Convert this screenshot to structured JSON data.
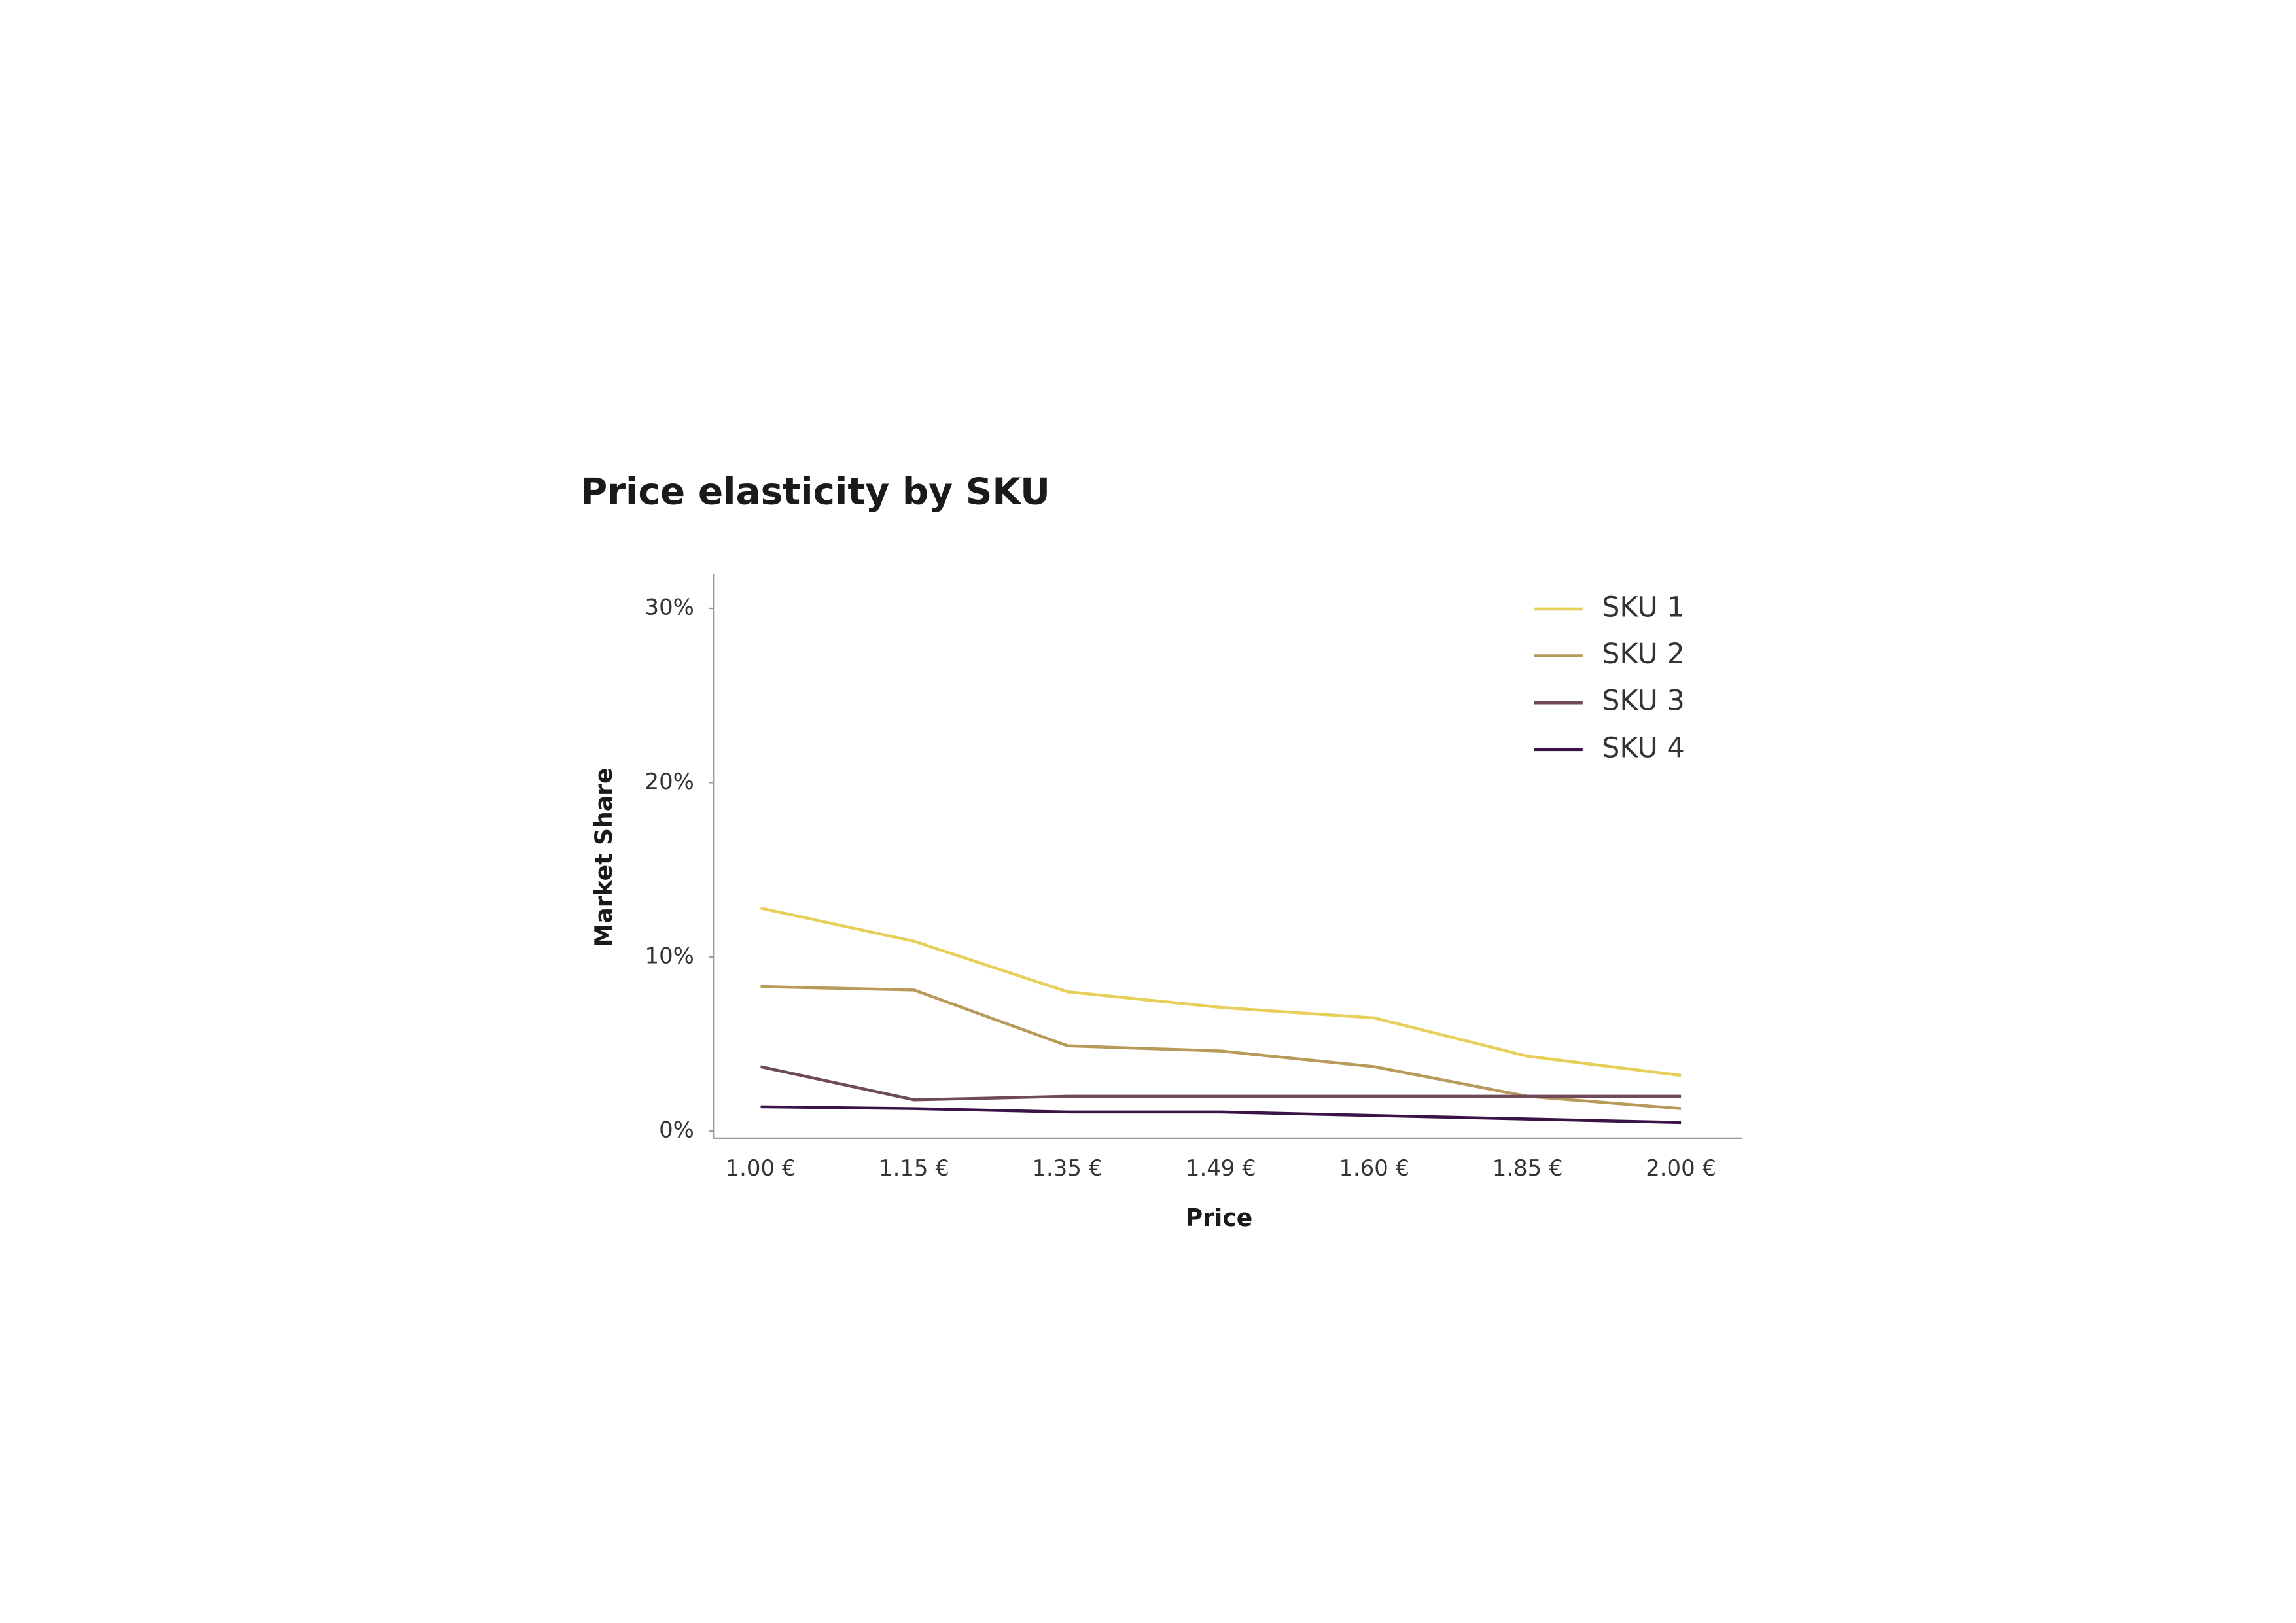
{
  "chart_data": {
    "type": "line",
    "title": "Price elasticity by SKU",
    "x_label": "Price",
    "y_label": "Market Share",
    "categories": [
      "1.00 €",
      "1.15 €",
      "1.35 €",
      "1.49 €",
      "1.60 €",
      "1.85 €",
      "2.00 €"
    ],
    "series": [
      {
        "name": "SKU 1",
        "color": "#e8cf5a",
        "values": [
          12.8,
          10.9,
          8.0,
          7.1,
          6.5,
          4.3,
          3.2
        ]
      },
      {
        "name": "SKU 2",
        "color": "#b89a5a",
        "values": [
          8.3,
          8.1,
          4.9,
          4.6,
          3.7,
          2.0,
          1.3
        ]
      },
      {
        "name": "SKU 3",
        "color": "#6e4a5a",
        "values": [
          3.7,
          1.8,
          2.0,
          2.0,
          2.0,
          2.0,
          2.0
        ]
      },
      {
        "name": "SKU 4",
        "color": "#3a1446",
        "values": [
          1.4,
          1.3,
          1.1,
          1.1,
          0.9,
          0.7,
          0.5
        ]
      }
    ],
    "ylim": [
      -0.4,
      32
    ],
    "yticks": [
      {
        "value": 0,
        "label": "0%"
      },
      {
        "value": 10,
        "label": "10%"
      },
      {
        "value": 20,
        "label": "20%"
      },
      {
        "value": 30,
        "label": "30%"
      }
    ],
    "legend": "upper-right",
    "grid": false
  }
}
